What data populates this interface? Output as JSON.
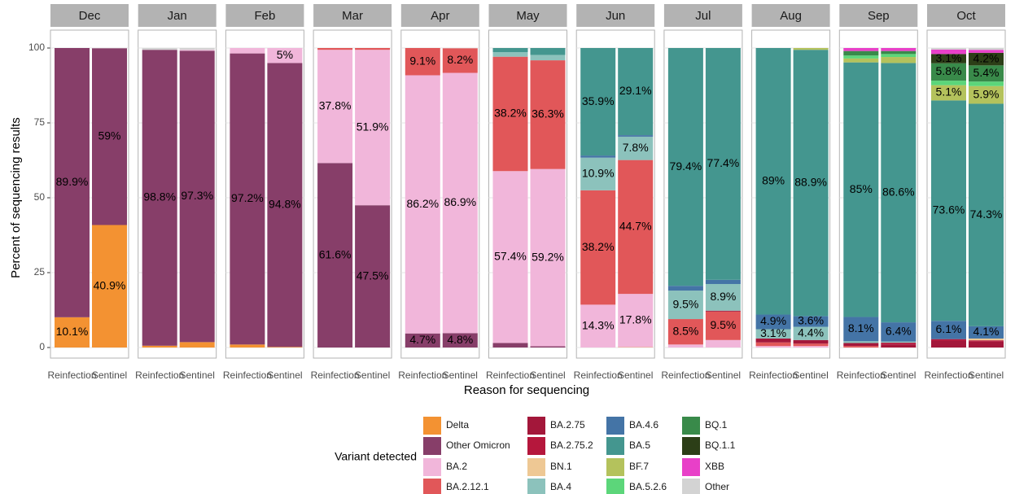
{
  "chart_data": {
    "type": "bar",
    "stacked": true,
    "x_label": "Reason for sequencing",
    "y_label": "Percent of sequencing results",
    "legend_title": "Variant detected",
    "legend_position": "bottom",
    "facets": [
      "Dec",
      "Jan",
      "Feb",
      "Mar",
      "Apr",
      "May",
      "Jun",
      "Jul",
      "Aug",
      "Sep",
      "Oct"
    ],
    "categories": [
      "Reinfection",
      "Sentinel"
    ],
    "ylim": [
      0,
      100
    ],
    "yticks": [
      0,
      25,
      50,
      75,
      100
    ],
    "grid": true,
    "series": [
      {
        "name": "Delta",
        "color": "#F39232",
        "values": [
          [
            10.1,
            40.9
          ],
          [
            0.6,
            1.8
          ],
          [
            1,
            0.2
          ],
          [
            0,
            0
          ],
          [
            0,
            0
          ],
          [
            0,
            0
          ],
          [
            0,
            0.1
          ],
          [
            0,
            0
          ],
          [
            0,
            0
          ],
          [
            0,
            0
          ],
          [
            0,
            0
          ]
        ],
        "value_labels": [
          [
            "10.1%",
            "40.9%"
          ],
          [
            null,
            null
          ],
          [
            null,
            null
          ],
          [
            null,
            null
          ],
          [
            null,
            null
          ],
          [
            null,
            null
          ],
          [
            null,
            null
          ],
          [
            null,
            null
          ],
          [
            null,
            null
          ],
          [
            null,
            null
          ],
          [
            null,
            null
          ]
        ]
      },
      {
        "name": "Other Omicron",
        "color": "#873E69",
        "values": [
          [
            89.9,
            59
          ],
          [
            98.8,
            97.3
          ],
          [
            97.2,
            94.8
          ],
          [
            61.6,
            47.5
          ],
          [
            4.7,
            4.8
          ],
          [
            1.5,
            0.4
          ],
          [
            0,
            0
          ],
          [
            0,
            0
          ],
          [
            0,
            0
          ],
          [
            0,
            0
          ],
          [
            0,
            0
          ]
        ],
        "value_labels": [
          [
            "89.9%",
            "59%"
          ],
          [
            "98.8%",
            "97.3%"
          ],
          [
            "97.2%",
            "94.8%"
          ],
          [
            "61.6%",
            "47.5%"
          ],
          [
            "4.7%",
            "4.8%"
          ],
          [
            null,
            null
          ],
          [
            null,
            null
          ],
          [
            null,
            null
          ],
          [
            null,
            null
          ],
          [
            null,
            null
          ],
          [
            null,
            null
          ]
        ]
      },
      {
        "name": "BA.2",
        "color": "#F1B6DA",
        "values": [
          [
            0,
            0
          ],
          [
            0,
            0.3
          ],
          [
            1.8,
            5
          ],
          [
            37.8,
            51.9
          ],
          [
            86.2,
            86.9
          ],
          [
            57.4,
            59.2
          ],
          [
            14.3,
            17.8
          ],
          [
            1,
            2.5
          ],
          [
            0.5,
            0.5
          ],
          [
            0,
            0
          ],
          [
            0,
            0
          ]
        ],
        "value_labels": [
          [
            null,
            null
          ],
          [
            null,
            null
          ],
          [
            null,
            "5%"
          ],
          [
            "37.8%",
            "51.9%"
          ],
          [
            "86.2%",
            "86.9%"
          ],
          [
            "57.4%",
            "59.2%"
          ],
          [
            "14.3%",
            "17.8%"
          ],
          [
            null,
            null
          ],
          [
            null,
            null
          ],
          [
            null,
            null
          ],
          [
            null,
            null
          ]
        ]
      },
      {
        "name": "BA.2.12.1",
        "color": "#E15759",
        "values": [
          [
            0,
            0
          ],
          [
            0,
            0
          ],
          [
            0,
            0
          ],
          [
            0.6,
            0.6
          ],
          [
            9.1,
            8.2
          ],
          [
            38.2,
            36.3
          ],
          [
            38.2,
            44.7
          ],
          [
            8.5,
            9.5
          ],
          [
            1.2,
            0.8
          ],
          [
            0.5,
            0
          ],
          [
            0,
            0
          ]
        ],
        "value_labels": [
          [
            null,
            null
          ],
          [
            null,
            null
          ],
          [
            null,
            null
          ],
          [
            null,
            null
          ],
          [
            "9.1%",
            "8.2%"
          ],
          [
            "38.2%",
            "36.3%"
          ],
          [
            "38.2%",
            "44.7%"
          ],
          [
            "8.5%",
            "9.5%"
          ],
          [
            null,
            null
          ],
          [
            null,
            null
          ],
          [
            null,
            null
          ]
        ]
      },
      {
        "name": "BA.2.75",
        "color": "#A3173A",
        "values": [
          [
            0,
            0
          ],
          [
            0,
            0
          ],
          [
            0,
            0
          ],
          [
            0,
            0
          ],
          [
            0,
            0
          ],
          [
            0,
            0
          ],
          [
            0,
            0
          ],
          [
            0,
            0.3
          ],
          [
            1.3,
            1.2
          ],
          [
            1,
            1
          ],
          [
            2.3,
            2
          ]
        ]
      },
      {
        "name": "BA.2.75.2",
        "color": "#B5173C",
        "values": [
          [
            0,
            0
          ],
          [
            0,
            0
          ],
          [
            0,
            0
          ],
          [
            0,
            0
          ],
          [
            0,
            0
          ],
          [
            0,
            0
          ],
          [
            0,
            0
          ],
          [
            0,
            0
          ],
          [
            0,
            0
          ],
          [
            0,
            0.6
          ],
          [
            0.5,
            0.4
          ]
        ]
      },
      {
        "name": "BN.1",
        "color": "#EEC894",
        "values": [
          [
            0,
            0
          ],
          [
            0,
            0
          ],
          [
            0,
            0
          ],
          [
            0,
            0
          ],
          [
            0,
            0
          ],
          [
            0,
            0
          ],
          [
            0,
            0
          ],
          [
            0,
            0
          ],
          [
            0,
            0
          ],
          [
            0,
            0
          ],
          [
            0,
            0.6
          ]
        ]
      },
      {
        "name": "BA.4",
        "color": "#8CC2BC",
        "values": [
          [
            0,
            0
          ],
          [
            0,
            0
          ],
          [
            0,
            0
          ],
          [
            0,
            0
          ],
          [
            0,
            0
          ],
          [
            1.5,
            1.8
          ],
          [
            10.9,
            7.8
          ],
          [
            9.5,
            8.9
          ],
          [
            3.1,
            4.4
          ],
          [
            0.6,
            0.4
          ],
          [
            0,
            0
          ]
        ],
        "value_labels": [
          [
            null,
            null
          ],
          [
            null,
            null
          ],
          [
            null,
            null
          ],
          [
            null,
            null
          ],
          [
            null,
            null
          ],
          [
            null,
            null
          ],
          [
            "10.9%",
            "7.8%"
          ],
          [
            "9.5%",
            "8.9%"
          ],
          [
            "3.1%",
            "4.4%"
          ],
          [
            null,
            null
          ],
          [
            null,
            null
          ]
        ]
      },
      {
        "name": "BA.4.6",
        "color": "#4474A6",
        "values": [
          [
            0,
            0
          ],
          [
            0,
            0
          ],
          [
            0,
            0
          ],
          [
            0,
            0
          ],
          [
            0,
            0
          ],
          [
            0,
            0
          ],
          [
            0.7,
            0.5
          ],
          [
            1.6,
            1.4
          ],
          [
            4.9,
            3.6
          ],
          [
            8.1,
            6.4
          ],
          [
            6.1,
            4.1
          ]
        ],
        "value_labels": [
          [
            null,
            null
          ],
          [
            null,
            null
          ],
          [
            null,
            null
          ],
          [
            null,
            null
          ],
          [
            null,
            null
          ],
          [
            null,
            null
          ],
          [
            null,
            null
          ],
          [
            null,
            null
          ],
          [
            "4.9%",
            "3.6%"
          ],
          [
            "8.1%",
            "6.4%"
          ],
          [
            "6.1%",
            "4.1%"
          ]
        ]
      },
      {
        "name": "BA.5",
        "color": "#44968F",
        "values": [
          [
            0,
            0
          ],
          [
            0,
            0
          ],
          [
            0,
            0
          ],
          [
            0,
            0
          ],
          [
            0,
            0
          ],
          [
            1.4,
            2.3
          ],
          [
            35.9,
            29.1
          ],
          [
            79.4,
            77.4
          ],
          [
            89,
            88.9
          ],
          [
            85,
            86.6
          ],
          [
            73.6,
            74.3
          ]
        ],
        "value_labels": [
          [
            null,
            null
          ],
          [
            null,
            null
          ],
          [
            null,
            null
          ],
          [
            null,
            null
          ],
          [
            null,
            null
          ],
          [
            null,
            null
          ],
          [
            "35.9%",
            "29.1%"
          ],
          [
            "79.4%",
            "77.4%"
          ],
          [
            "89%",
            "88.9%"
          ],
          [
            "85%",
            "86.6%"
          ],
          [
            "73.6%",
            "74.3%"
          ]
        ]
      },
      {
        "name": "BF.7",
        "color": "#B4C25C",
        "values": [
          [
            0,
            0
          ],
          [
            0,
            0
          ],
          [
            0,
            0
          ],
          [
            0,
            0
          ],
          [
            0,
            0
          ],
          [
            0,
            0
          ],
          [
            0,
            0
          ],
          [
            0,
            0
          ],
          [
            0,
            0.6
          ],
          [
            1.3,
            2
          ],
          [
            5.1,
            5.9
          ]
        ],
        "value_labels": [
          [
            null,
            null
          ],
          [
            null,
            null
          ],
          [
            null,
            null
          ],
          [
            null,
            null
          ],
          [
            null,
            null
          ],
          [
            null,
            null
          ],
          [
            null,
            null
          ],
          [
            null,
            null
          ],
          [
            null,
            null
          ],
          [
            null,
            null
          ],
          [
            "5.1%",
            "5.9%"
          ]
        ]
      },
      {
        "name": "BA.5.2.6",
        "color": "#5CD67A",
        "values": [
          [
            0,
            0
          ],
          [
            0,
            0
          ],
          [
            0,
            0
          ],
          [
            0,
            0
          ],
          [
            0,
            0
          ],
          [
            0,
            0
          ],
          [
            0,
            0
          ],
          [
            0,
            0
          ],
          [
            0,
            0
          ],
          [
            1,
            1
          ],
          [
            1.5,
            1.5
          ]
        ]
      },
      {
        "name": "BQ.1",
        "color": "#398A4A",
        "values": [
          [
            0,
            0
          ],
          [
            0,
            0
          ],
          [
            0,
            0
          ],
          [
            0,
            0
          ],
          [
            0,
            0
          ],
          [
            0,
            0
          ],
          [
            0,
            0
          ],
          [
            0,
            0
          ],
          [
            0,
            0
          ],
          [
            1.5,
            1
          ],
          [
            5.8,
            5.4
          ]
        ],
        "value_labels": [
          [
            null,
            null
          ],
          [
            null,
            null
          ],
          [
            null,
            null
          ],
          [
            null,
            null
          ],
          [
            null,
            null
          ],
          [
            null,
            null
          ],
          [
            null,
            null
          ],
          [
            null,
            null
          ],
          [
            null,
            null
          ],
          [
            null,
            null
          ],
          [
            "5.8%",
            "5.4%"
          ]
        ]
      },
      {
        "name": "BQ.1.1",
        "color": "#2C3E17",
        "values": [
          [
            0,
            0
          ],
          [
            0,
            0
          ],
          [
            0,
            0
          ],
          [
            0,
            0
          ],
          [
            0,
            0
          ],
          [
            0,
            0
          ],
          [
            0,
            0
          ],
          [
            0,
            0
          ],
          [
            0,
            0
          ],
          [
            0,
            0
          ],
          [
            3.1,
            4.2
          ]
        ],
        "value_labels": [
          [
            null,
            null
          ],
          [
            null,
            null
          ],
          [
            null,
            null
          ],
          [
            null,
            null
          ],
          [
            null,
            null
          ],
          [
            null,
            null
          ],
          [
            null,
            null
          ],
          [
            null,
            null
          ],
          [
            null,
            null
          ],
          [
            null,
            null
          ],
          [
            "3.1%",
            "4.2%"
          ]
        ]
      },
      {
        "name": "XBB",
        "color": "#E840C8",
        "values": [
          [
            0,
            0
          ],
          [
            0,
            0
          ],
          [
            0,
            0
          ],
          [
            0,
            0
          ],
          [
            0,
            0
          ],
          [
            0,
            0
          ],
          [
            0,
            0
          ],
          [
            0,
            0
          ],
          [
            0,
            0
          ],
          [
            1,
            1
          ],
          [
            1.5,
            1
          ]
        ]
      },
      {
        "name": "Other",
        "color": "#D3D3D3",
        "values": [
          [
            0,
            0
          ],
          [
            0.6,
            0.6
          ],
          [
            0,
            0
          ],
          [
            0,
            0
          ],
          [
            0,
            0
          ],
          [
            0,
            0
          ],
          [
            0,
            0
          ],
          [
            0,
            0
          ],
          [
            0,
            0
          ],
          [
            0,
            0
          ],
          [
            0.5,
            0.6
          ]
        ]
      }
    ]
  }
}
